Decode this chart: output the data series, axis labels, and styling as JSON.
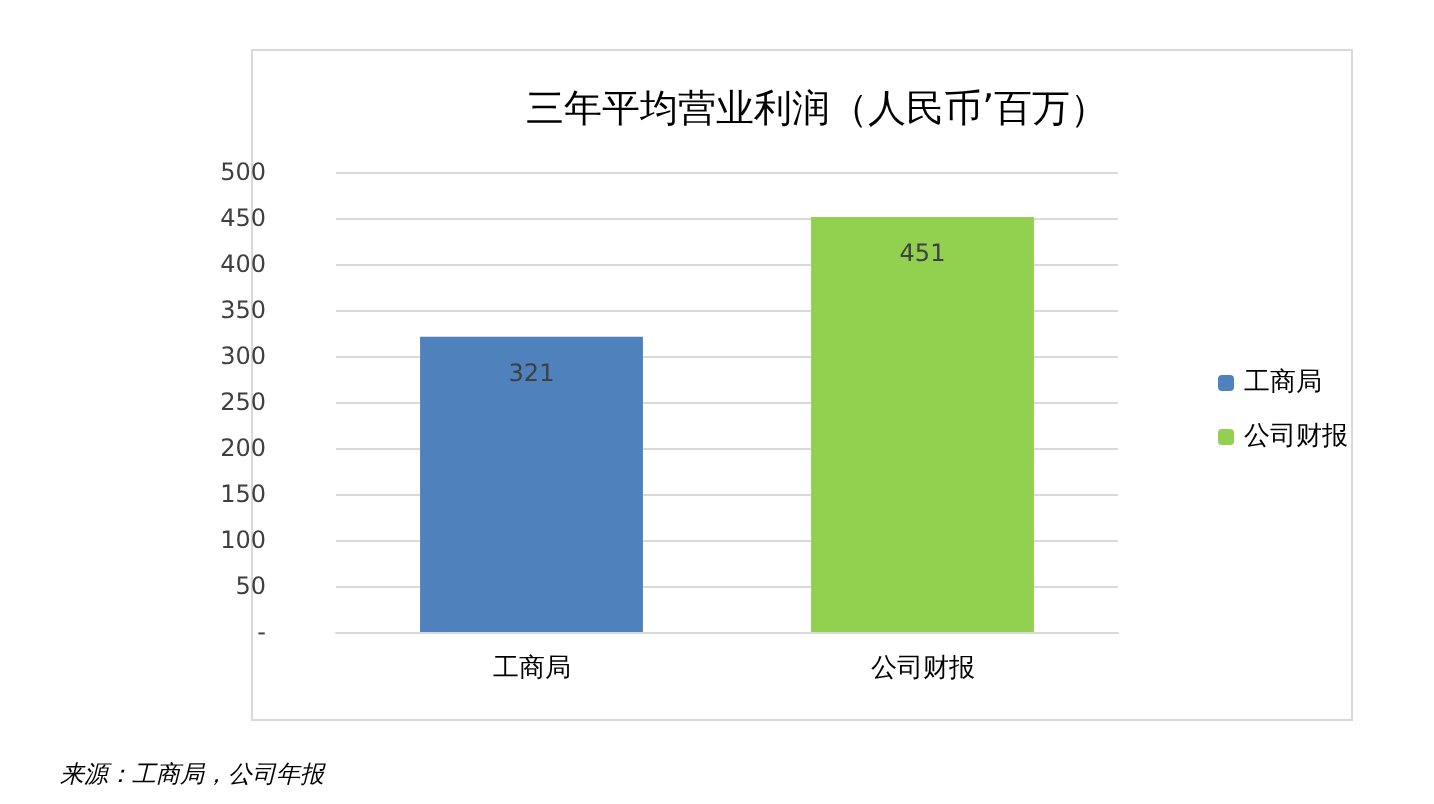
{
  "chart_data": {
    "type": "bar",
    "title": "三年平均营业利润（人民币’百万）",
    "categories": [
      "工商局",
      "公司财报"
    ],
    "series": [
      {
        "name": "工商局",
        "color": "#4f81bd",
        "values": [
          321,
          null
        ]
      },
      {
        "name": "公司财报",
        "color": "#92d050",
        "values": [
          null,
          451
        ]
      }
    ],
    "ylim": [
      0,
      500
    ],
    "yticks": [
      {
        "value": 0,
        "label": "-"
      },
      50,
      100,
      150,
      200,
      250,
      300,
      350,
      400,
      450,
      500
    ],
    "grid": "y",
    "legend": "right",
    "data_labels": true,
    "annotations": [
      "来源：工商局，公司年报"
    ]
  }
}
